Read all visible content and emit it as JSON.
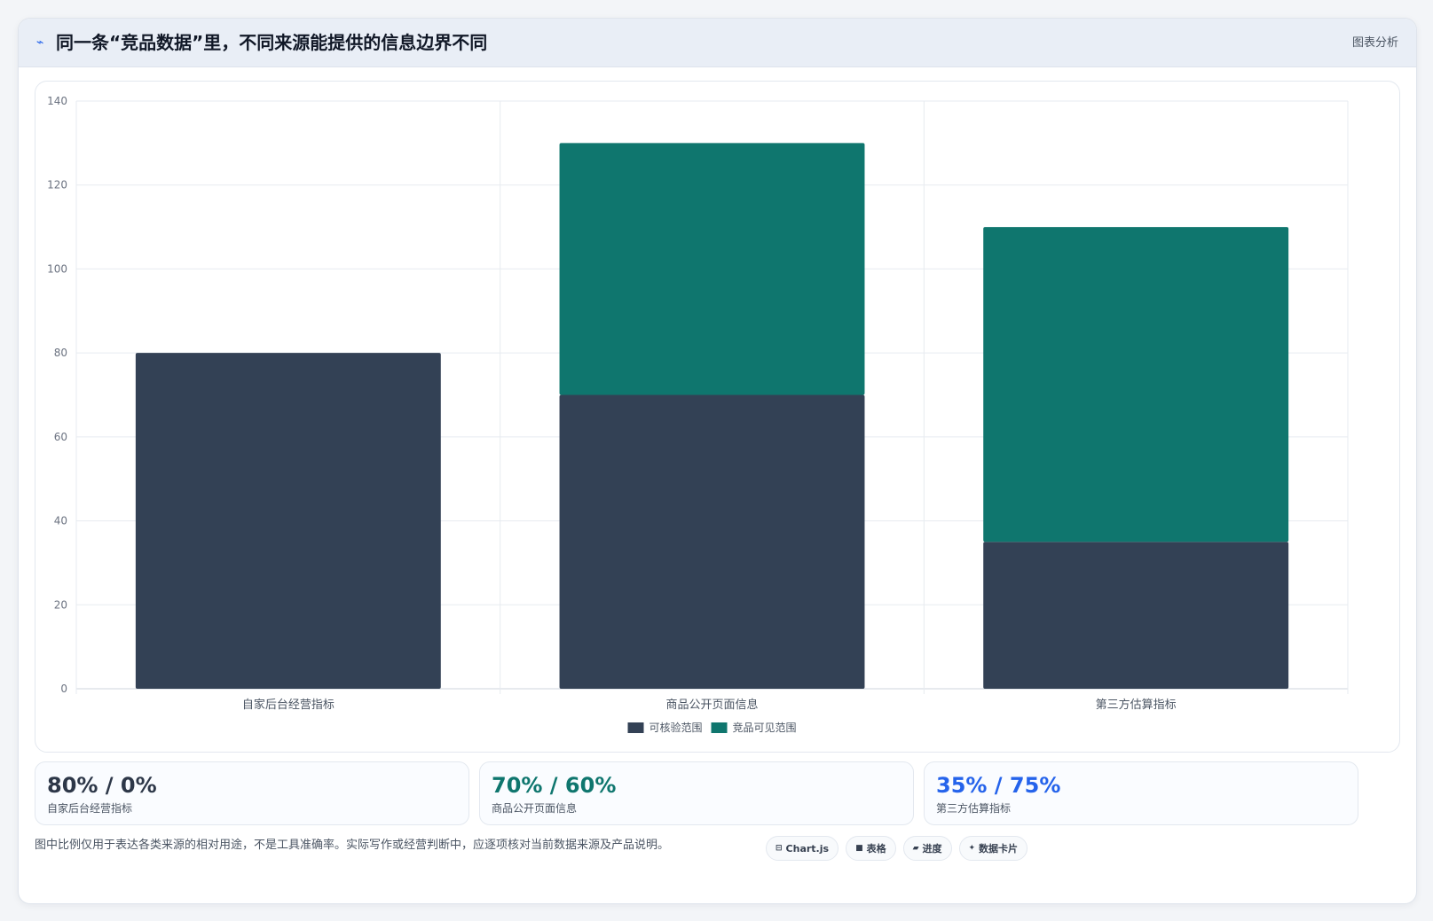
{
  "header": {
    "icon": "pulse-icon",
    "title": "同一条“竞品数据”里，不同来源能提供的信息边界不同",
    "badge": "图表分析"
  },
  "chart_data": {
    "type": "bar",
    "stacked": true,
    "categories": [
      "自家后台经营指标",
      "商品公开页面信息",
      "第三方估算指标"
    ],
    "series": [
      {
        "name": "可核验范围",
        "values": [
          80,
          70,
          35
        ],
        "color": "#334155"
      },
      {
        "name": "竞品可见范围",
        "values": [
          0,
          60,
          75
        ],
        "color": "#0f766e"
      }
    ],
    "ylim": [
      0,
      140
    ],
    "yticks": [
      0,
      20,
      40,
      60,
      80,
      100,
      120,
      140
    ],
    "grid": true,
    "legend": "bottom"
  },
  "stats": [
    {
      "value": "80% / 0%",
      "label": "自家后台经营指标",
      "color": "#2d3748"
    },
    {
      "value": "70% / 60%",
      "label": "商品公开页面信息",
      "color": "#0f766e"
    },
    {
      "value": "35% / 75%",
      "label": "第三方估算指标",
      "color": "#2563eb"
    }
  ],
  "footnote": "图中比例仅用于表达各类来源的相对用途，不是工具准确率。实际写作或经营判断中，应逐项核对当前数据来源及产品说明。",
  "chips": [
    {
      "icon": "chart-icon",
      "glyph": "⊟",
      "label": "Chart.js"
    },
    {
      "icon": "table-icon",
      "glyph": "■",
      "label": "表格"
    },
    {
      "icon": "progress-icon",
      "glyph": "▰",
      "label": "进度"
    },
    {
      "icon": "sparkle-icon",
      "glyph": "✦",
      "label": "数据卡片"
    }
  ]
}
